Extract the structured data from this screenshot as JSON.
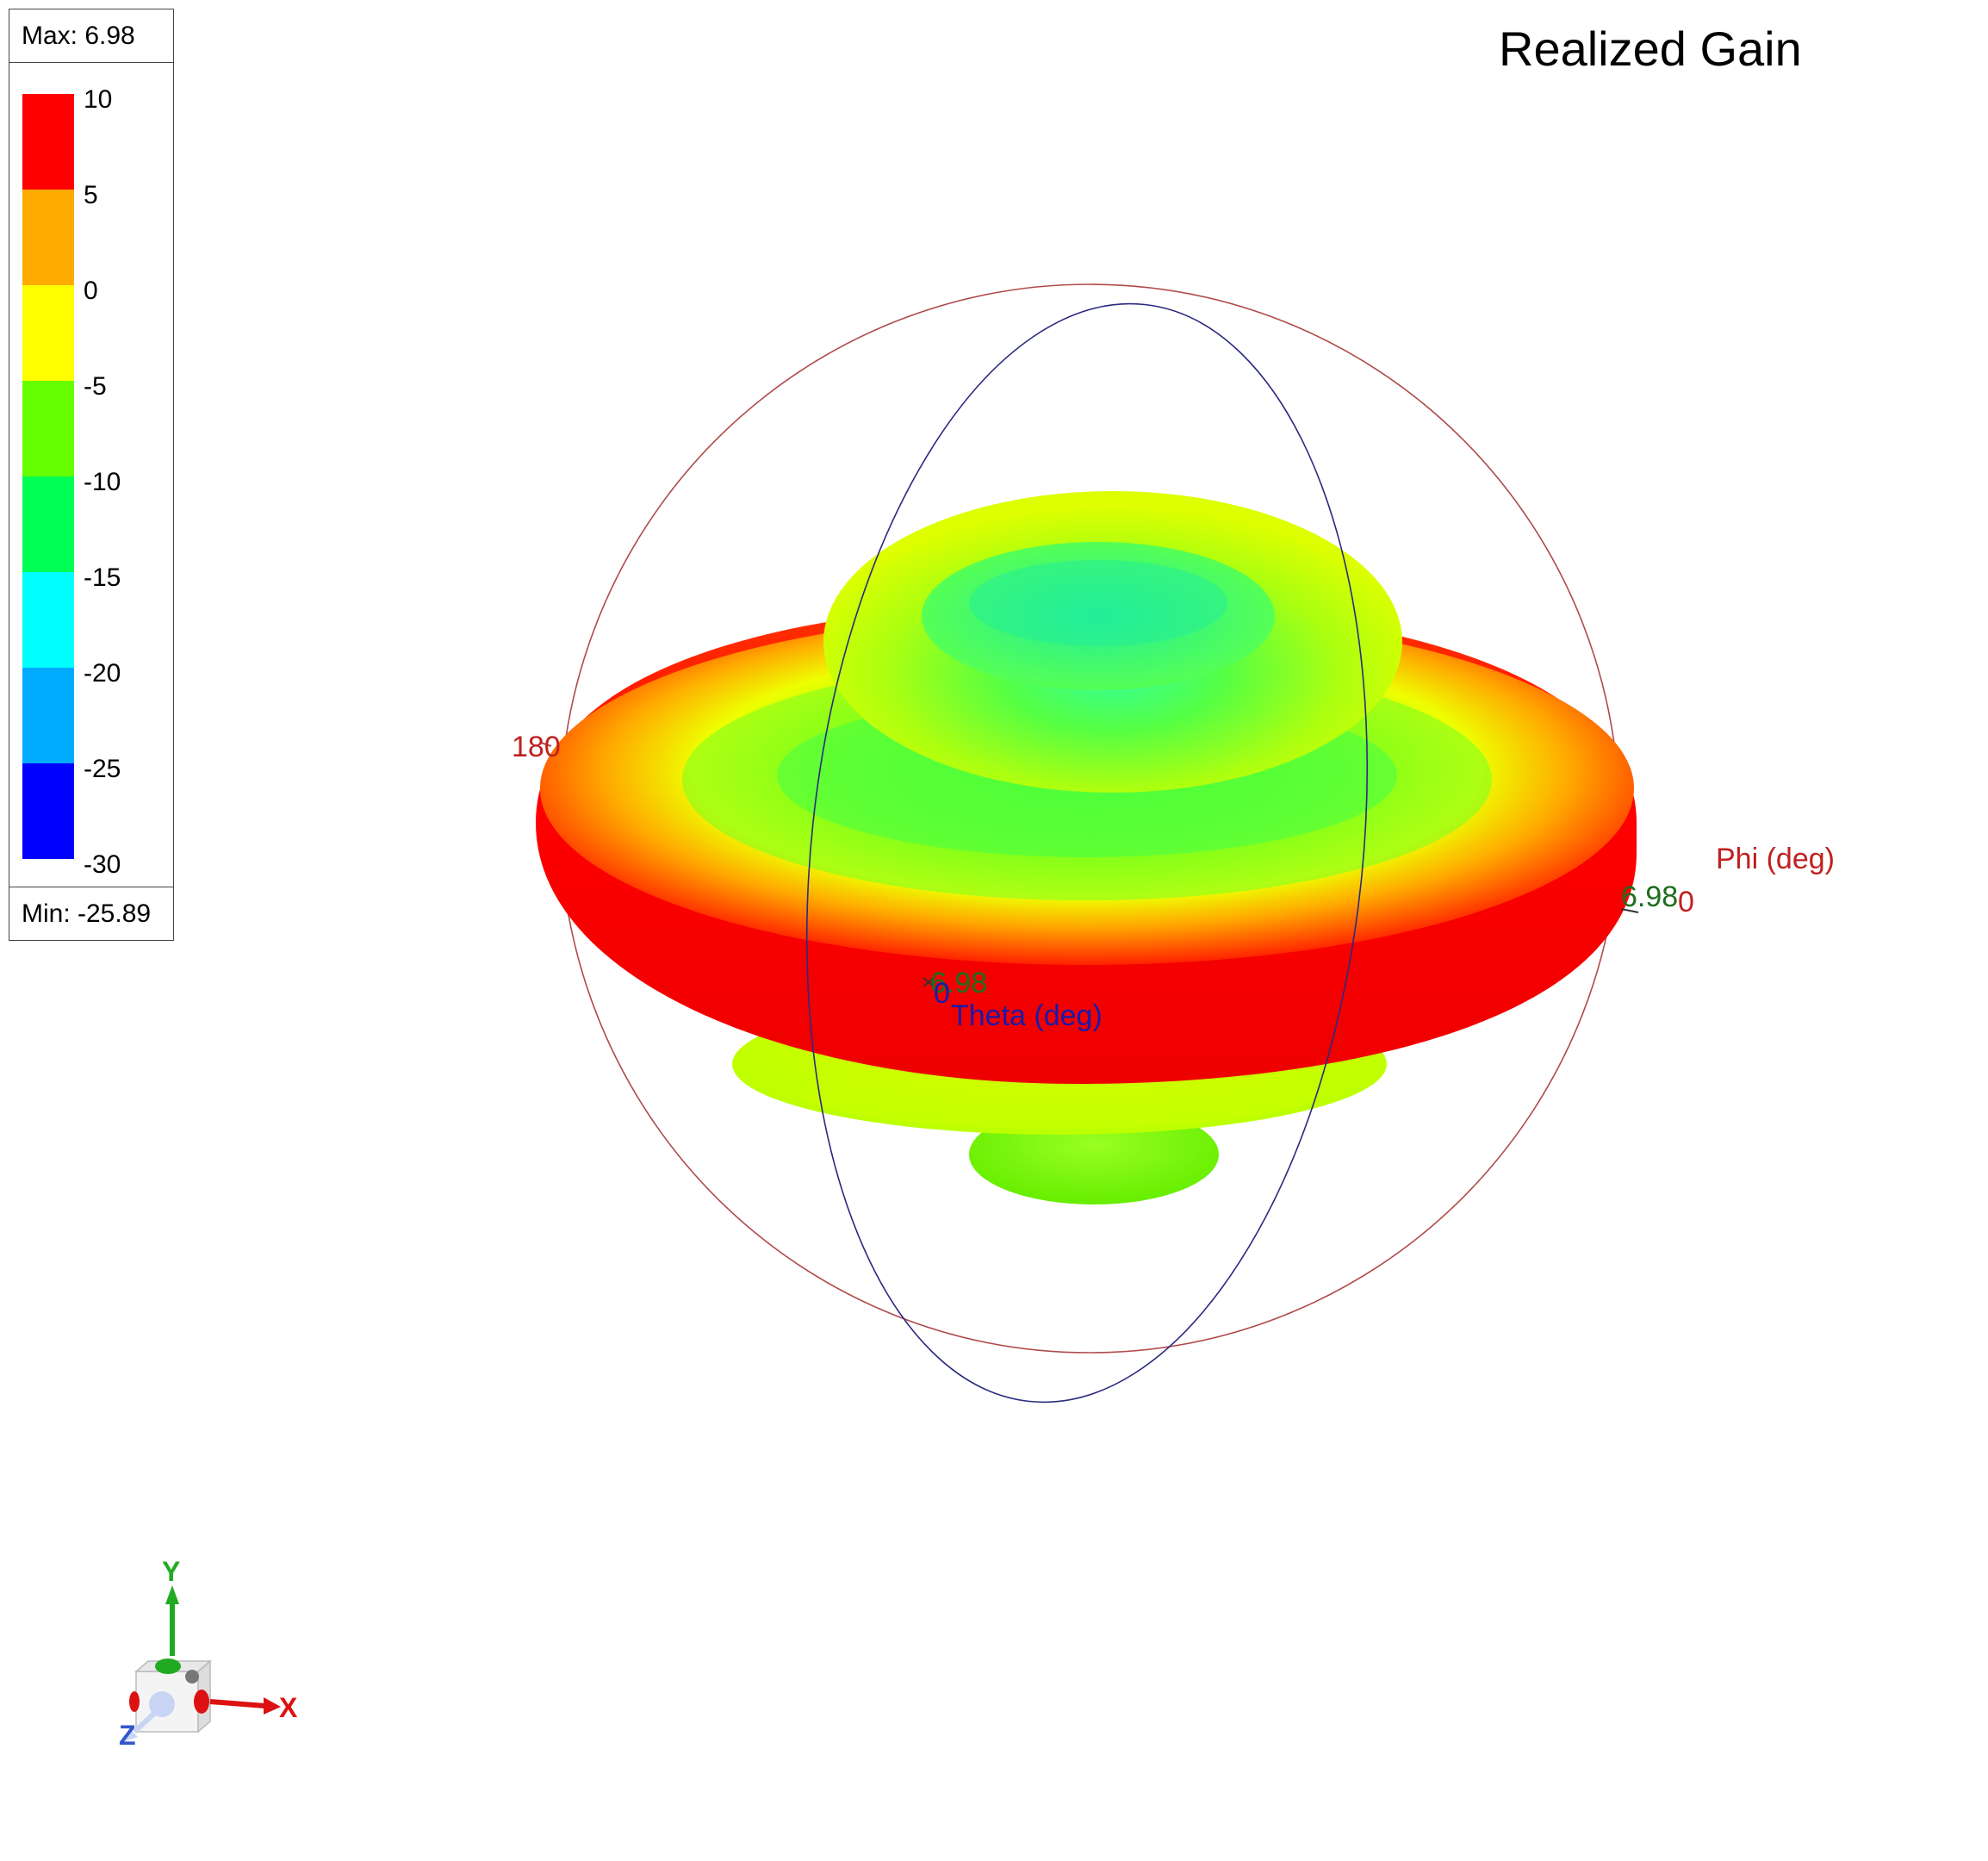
{
  "plot": {
    "title": "Realized Gain",
    "max_label": "Max: 6.98",
    "min_label": "Min: -25.89"
  },
  "legend": {
    "ticks": [
      "10",
      "5",
      "0",
      "-5",
      "-10",
      "-15",
      "-20",
      "-25",
      "-30"
    ],
    "colors": [
      "#ff0000",
      "#ffaa00",
      "#ffff00",
      "#66ff00",
      "#00ff55",
      "#00ffff",
      "#00aaff",
      "#0000ff"
    ]
  },
  "axes": {
    "phi_label": "Phi (deg)",
    "theta_label": "Theta (deg)",
    "phi_180": "180",
    "phi_0": "0",
    "theta_0": "0",
    "max_marker_right": "6.98",
    "max_marker_center": "6.98"
  },
  "triad": {
    "x": "X",
    "y": "Y",
    "z": "Z"
  },
  "colors": {
    "phi_circle": "#b04a4a",
    "theta_circle": "#2a2a80",
    "max_marker": "#1e6e1e"
  }
}
